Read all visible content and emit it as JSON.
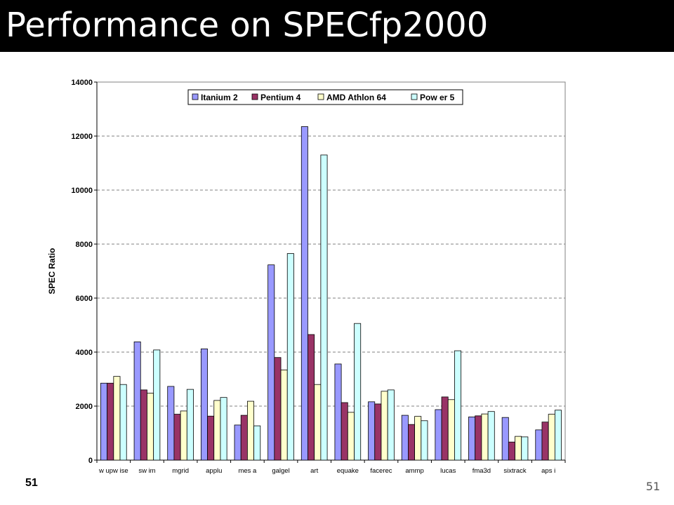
{
  "slide": {
    "title": "Performance on SPECfp2000",
    "number_left": "51",
    "number_right": "51"
  },
  "chart_data": {
    "type": "bar",
    "title": "",
    "xlabel": "",
    "ylabel": "SPEC Ratio",
    "ylim": [
      0,
      14000
    ],
    "yticks": [
      0,
      2000,
      4000,
      6000,
      8000,
      10000,
      12000,
      14000
    ],
    "grid": true,
    "legend_position": "top",
    "categories": [
      "w upw ise",
      "sw im",
      "mgrid",
      "applu",
      "mes a",
      "galgel",
      "art",
      "equake",
      "facerec",
      "ammp",
      "lucas",
      "fma3d",
      "sixtrack",
      "aps i"
    ],
    "series": [
      {
        "name": "Itanium 2",
        "color": "#9999ff",
        "values": [
          2850,
          4380,
          2730,
          4120,
          1300,
          7230,
          12350,
          3560,
          2160,
          1660,
          1870,
          1600,
          1580,
          1120
        ]
      },
      {
        "name": "Pentium 4",
        "color": "#993366",
        "values": [
          2850,
          2600,
          1700,
          1630,
          1660,
          3800,
          4650,
          2130,
          2080,
          1320,
          2340,
          1640,
          670,
          1410
        ]
      },
      {
        "name": "AMD Athlon 64",
        "color": "#ffffcc",
        "values": [
          3100,
          2480,
          1820,
          2210,
          2180,
          3340,
          2800,
          1770,
          2550,
          1620,
          2240,
          1710,
          880,
          1700
        ]
      },
      {
        "name": "Pow er 5",
        "color": "#ccffff",
        "values": [
          2800,
          4080,
          2620,
          2320,
          1270,
          7650,
          11300,
          5060,
          2600,
          1460,
          4050,
          1800,
          860,
          1850
        ]
      }
    ]
  }
}
